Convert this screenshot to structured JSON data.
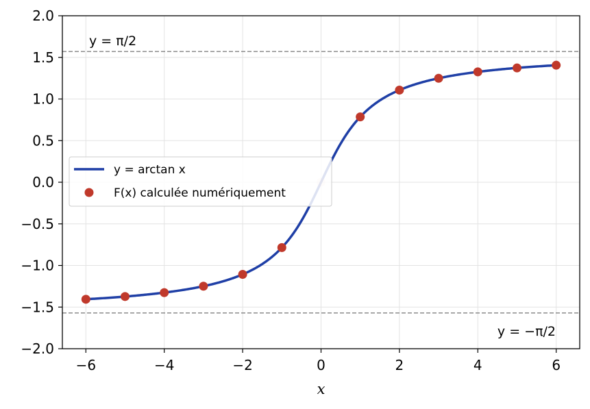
{
  "chart_data": {
    "type": "line",
    "title": "",
    "xlabel": "x",
    "ylabel": "",
    "xlim": [
      -6.6,
      6.6
    ],
    "ylim": [
      -2.0,
      2.0
    ],
    "xticks": [
      -6,
      -4,
      -2,
      0,
      2,
      4,
      6
    ],
    "xtick_labels": [
      "−6",
      "−4",
      "−2",
      "0",
      "2",
      "4",
      "6"
    ],
    "yticks": [
      -2.0,
      -1.5,
      -1.0,
      -0.5,
      0.0,
      0.5,
      1.0,
      1.5,
      2.0
    ],
    "ytick_labels": [
      "−2.0",
      "−1.5",
      "−1.0",
      "−0.5",
      "0.0",
      "0.5",
      "1.0",
      "1.5",
      "2.0"
    ],
    "grid": true,
    "legend_position": "center-left",
    "series": [
      {
        "name": "y = arctan x",
        "kind": "line",
        "color": "#1f3fa6",
        "function": "arctan",
        "x_range": [
          -6,
          6
        ]
      },
      {
        "name": "F(x) calculée numériquement",
        "kind": "scatter",
        "color": "#c0392b",
        "x": [
          -6,
          -5,
          -4,
          -3,
          -2,
          -1,
          0,
          1,
          2,
          3,
          4,
          5,
          6
        ],
        "y": [
          -1.406,
          -1.373,
          -1.326,
          -1.249,
          -1.107,
          -0.785,
          0.0,
          0.785,
          1.107,
          1.249,
          1.326,
          1.373,
          1.406
        ]
      }
    ],
    "reference_lines": [
      {
        "y": 1.5708,
        "style": "dashed",
        "color": "#808080",
        "label": "y = π/2"
      },
      {
        "y": -1.5708,
        "style": "dashed",
        "color": "#808080",
        "label": "y = −π/2"
      }
    ],
    "legend": {
      "entries": [
        "y = arctan x",
        "F(x) calculée numériquement"
      ]
    }
  }
}
